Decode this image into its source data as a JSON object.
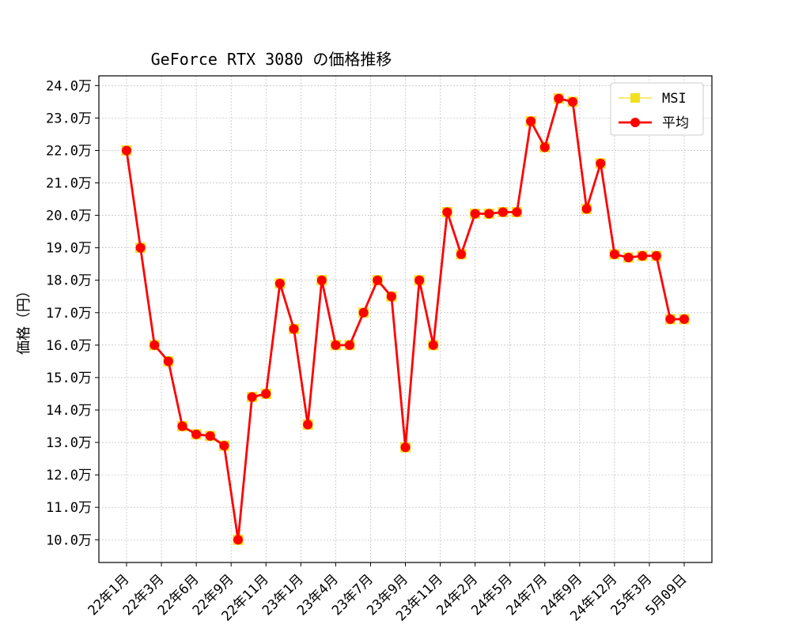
{
  "chart_data": {
    "type": "line",
    "title": "GeForce RTX 3080 の価格推移",
    "ylabel": "価格（円）",
    "xlabel": "",
    "y_tick_suffix": "万",
    "ylim": [
      9.3,
      24.3
    ],
    "yticks": [
      10,
      11,
      12,
      13,
      14,
      15,
      16,
      17,
      18,
      19,
      20,
      21,
      22,
      23,
      24
    ],
    "grid": true,
    "legend_position": "upper right",
    "x_tick_labels": [
      {
        "index": 0,
        "label": "22年1月"
      },
      {
        "index": 2.5,
        "label": "22年3月"
      },
      {
        "index": 5,
        "label": "22年6月"
      },
      {
        "index": 7.5,
        "label": "22年9月"
      },
      {
        "index": 10,
        "label": "22年11月"
      },
      {
        "index": 12.5,
        "label": "23年1月"
      },
      {
        "index": 15,
        "label": "23年4月"
      },
      {
        "index": 17.5,
        "label": "23年7月"
      },
      {
        "index": 20,
        "label": "23年9月"
      },
      {
        "index": 22.5,
        "label": "23年11月"
      },
      {
        "index": 25,
        "label": "24年2月"
      },
      {
        "index": 27.5,
        "label": "24年5月"
      },
      {
        "index": 30,
        "label": "24年7月"
      },
      {
        "index": 32.5,
        "label": "24年9月"
      },
      {
        "index": 35,
        "label": "24年12月"
      },
      {
        "index": 37.5,
        "label": "25年3月"
      },
      {
        "index": 40,
        "label": "5月09日"
      }
    ],
    "series": [
      {
        "name": "MSI",
        "color": "#f0e020",
        "marker": "square",
        "values": [
          22.0,
          19.0,
          16.0,
          15.5,
          13.5,
          13.25,
          13.2,
          12.9,
          10.0,
          14.4,
          14.5,
          17.9,
          16.5,
          13.55,
          18.0,
          16.0,
          16.0,
          17.0,
          18.0,
          17.5,
          12.85,
          18.0,
          16.0,
          20.1,
          18.8,
          20.05,
          20.05,
          20.1,
          20.1,
          22.9,
          22.1,
          23.6,
          23.5,
          20.2,
          21.6,
          18.8,
          18.7,
          18.75,
          18.75,
          16.8,
          16.8
        ]
      },
      {
        "name": "平均",
        "color": "#ff0000",
        "marker": "circle",
        "values": [
          22.0,
          19.0,
          16.0,
          15.5,
          13.5,
          13.25,
          13.2,
          12.9,
          10.0,
          14.4,
          14.5,
          17.9,
          16.5,
          13.55,
          18.0,
          16.0,
          16.0,
          17.0,
          18.0,
          17.5,
          12.85,
          18.0,
          16.0,
          20.1,
          18.8,
          20.05,
          20.05,
          20.1,
          20.1,
          22.9,
          22.1,
          23.6,
          23.5,
          20.2,
          21.6,
          18.8,
          18.7,
          18.75,
          18.75,
          16.8,
          16.8
        ]
      }
    ]
  }
}
